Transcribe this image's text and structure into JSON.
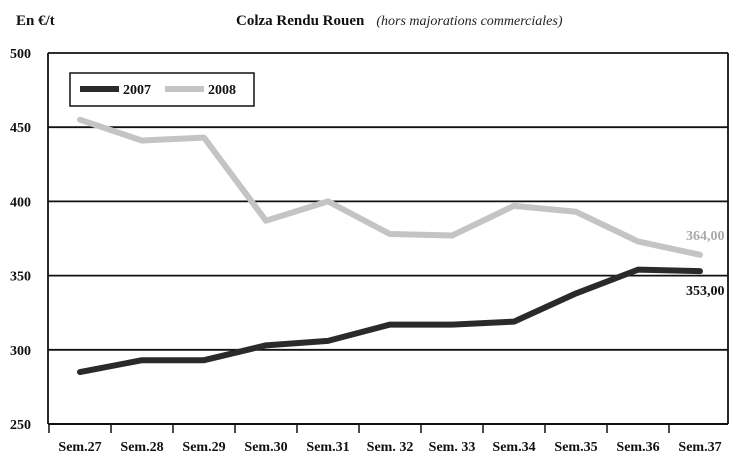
{
  "chart_data": {
    "type": "line",
    "title": "Colza Rendu Rouen",
    "subtitle": "(hors majorations commerciales)",
    "ylabel": "En €/t",
    "xlabel": "",
    "ylim": [
      250,
      500
    ],
    "yticks": [
      250,
      300,
      350,
      400,
      450,
      500
    ],
    "grid": true,
    "legend_position": "top-left",
    "categories": [
      "Sem.27",
      "Sem.28",
      "Sem.29",
      "Sem.30",
      "Sem.31",
      "Sem. 32",
      "Sem. 33",
      "Sem.34",
      "Sem.35",
      "Sem.36",
      "Sem.37"
    ],
    "series": [
      {
        "name": "2007",
        "color": "#2a2a2a",
        "values": [
          285,
          293,
          293,
          303,
          306,
          317,
          317,
          319,
          338,
          354,
          353
        ],
        "end_label": "353,00"
      },
      {
        "name": "2008",
        "color": "#c4c4c4",
        "values": [
          455,
          441,
          443,
          387,
          400,
          378,
          377,
          397,
          393,
          373,
          364
        ],
        "end_label": "364,00"
      }
    ]
  }
}
